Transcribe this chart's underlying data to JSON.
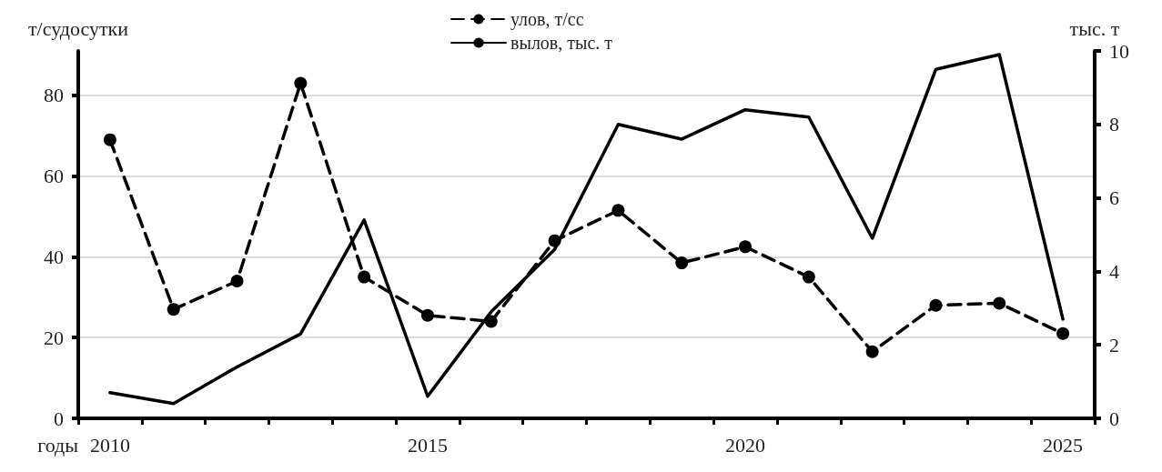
{
  "chart_data": {
    "type": "line",
    "xlabel": "годы",
    "ylabel": "т/судосутки",
    "y2label": "тыс. т",
    "categories": [
      "2010",
      null,
      null,
      null,
      null,
      "2015",
      null,
      null,
      null,
      null,
      "2020",
      null,
      null,
      null,
      null,
      "2025"
    ],
    "series": [
      {
        "name": "улов, т/сс",
        "color": "#000000",
        "marker": "circle",
        "line_style": "dashed",
        "values": [
          69,
          27,
          34,
          83,
          35,
          25.5,
          24,
          44,
          51.5,
          38.5,
          42.5,
          35,
          16.5,
          28,
          28.5,
          21
        ]
      },
      {
        "name": "вылов, тыс. т",
        "color": "#000000",
        "marker": "none",
        "line_style": "solid",
        "axis": "y2",
        "values": [
          0.7,
          0.4,
          1.4,
          2.3,
          5.4,
          0.6,
          2.9,
          4.6,
          8.0,
          7.6,
          8.4,
          8.2,
          4.9,
          9.5,
          9.9,
          2.7
        ]
      }
    ],
    "ylim": [
      0,
      91
    ],
    "yticks": [
      0,
      20,
      40,
      60,
      80
    ],
    "y2lim": [
      0,
      10
    ],
    "y2ticks": [
      0,
      2,
      4,
      6,
      8,
      10
    ],
    "grid": "y",
    "legend": "top"
  }
}
